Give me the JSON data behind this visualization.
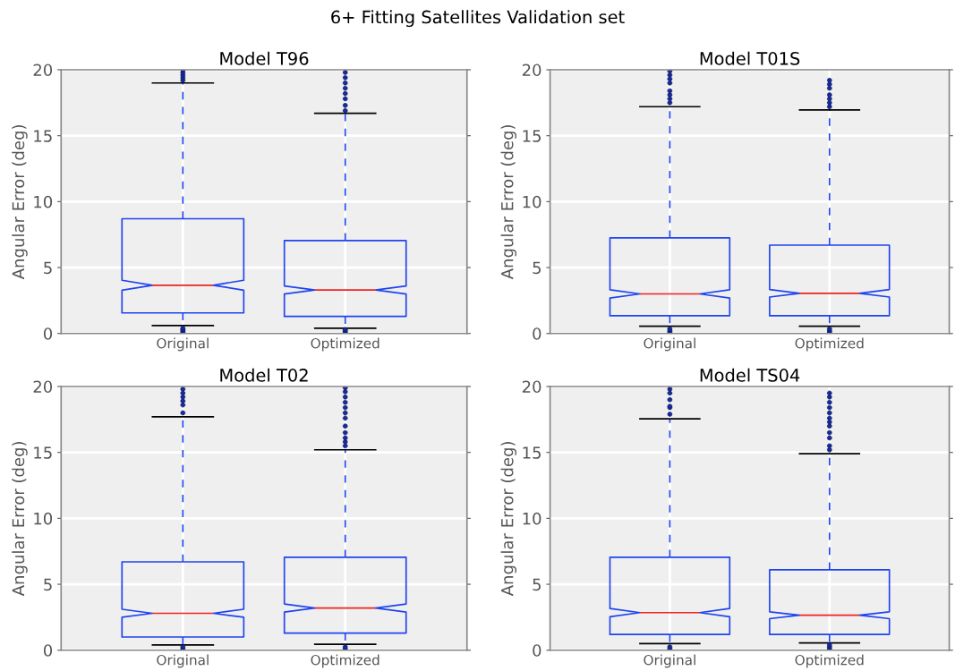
{
  "chart_data": [
    {
      "type": "box",
      "title": "6+ Fitting Satellites Validation set",
      "subtitle": "Model T96",
      "ylabel": "Angular Error (deg)",
      "categories": [
        "Original",
        "Optimized"
      ],
      "ylim": [
        0,
        20
      ],
      "yticks": [
        0,
        5,
        10,
        15,
        20
      ],
      "grid": true,
      "series": [
        {
          "color": "#1f44ee",
          "boxes": [
            {
              "low": 0.6,
              "q1": 1.56,
              "median": 3.66,
              "q3": 8.7,
              "high": 19.0,
              "outliers": [
                19.2,
                19.4,
                19.6,
                19.8,
                20.0,
                0.1,
                0.2,
                0.3,
                0.4
              ]
            },
            {
              "low": 0.4,
              "q1": 1.3,
              "median": 3.3,
              "q3": 7.05,
              "high": 16.7,
              "outliers": [
                16.9,
                17.3,
                17.8,
                18.2,
                18.6,
                19.0,
                19.4,
                19.8,
                0.1,
                0.2,
                0.3
              ]
            }
          ]
        }
      ]
    },
    {
      "type": "box",
      "title": "Model T01S",
      "ylabel": "Angular Error (deg)",
      "categories": [
        "Original",
        "Optimized"
      ],
      "ylim": [
        0,
        20
      ],
      "yticks": [
        0,
        5,
        10,
        15,
        20
      ],
      "grid": true,
      "series": [
        {
          "color": "#1f44ee",
          "boxes": [
            {
              "low": 0.55,
              "q1": 1.35,
              "median": 3.0,
              "q3": 7.25,
              "high": 17.2,
              "outliers": [
                17.5,
                17.8,
                18.1,
                18.4,
                19.0,
                19.3,
                19.6,
                19.9,
                0.1,
                0.2,
                0.35
              ]
            },
            {
              "low": 0.55,
              "q1": 1.35,
              "median": 3.05,
              "q3": 6.7,
              "high": 16.95,
              "outliers": [
                17.2,
                17.5,
                17.8,
                18.1,
                18.6,
                18.9,
                19.2,
                0.1,
                0.2,
                0.35
              ]
            }
          ]
        }
      ]
    },
    {
      "type": "box",
      "title": "Model T02",
      "ylabel": "Angular Error (deg)",
      "categories": [
        "Original",
        "Optimized"
      ],
      "ylim": [
        0,
        20
      ],
      "yticks": [
        0,
        5,
        10,
        15,
        20
      ],
      "grid": true,
      "series": [
        {
          "color": "#1f44ee",
          "boxes": [
            {
              "low": 0.4,
              "q1": 1.0,
              "median": 2.8,
              "q3": 6.7,
              "high": 17.7,
              "outliers": [
                18.0,
                18.6,
                18.9,
                19.2,
                19.5,
                19.8,
                0.1,
                0.25
              ]
            },
            {
              "low": 0.45,
              "q1": 1.3,
              "median": 3.2,
              "q3": 7.05,
              "high": 15.2,
              "outliers": [
                15.5,
                15.8,
                16.1,
                16.5,
                17.0,
                17.6,
                18.0,
                18.4,
                18.8,
                19.2,
                19.6,
                19.9,
                0.1,
                0.25
              ]
            }
          ]
        }
      ]
    },
    {
      "type": "box",
      "title": "Model TS04",
      "ylabel": "Angular Error (deg)",
      "categories": [
        "Original",
        "Optimized"
      ],
      "ylim": [
        0,
        20
      ],
      "yticks": [
        0,
        5,
        10,
        15,
        20
      ],
      "grid": true,
      "series": [
        {
          "color": "#1f44ee",
          "boxes": [
            {
              "low": 0.5,
              "q1": 1.2,
              "median": 2.85,
              "q3": 7.05,
              "high": 17.55,
              "outliers": [
                17.9,
                18.4,
                18.5,
                19.0,
                19.5,
                19.8,
                0.1,
                0.25
              ]
            },
            {
              "low": 0.55,
              "q1": 1.2,
              "median": 2.65,
              "q3": 6.1,
              "high": 14.9,
              "outliers": [
                15.2,
                15.5,
                16.1,
                16.5,
                17.0,
                17.3,
                17.6,
                18.0,
                18.4,
                18.8,
                19.2,
                19.5,
                0.1,
                0.25,
                0.4
              ]
            }
          ]
        }
      ]
    }
  ]
}
